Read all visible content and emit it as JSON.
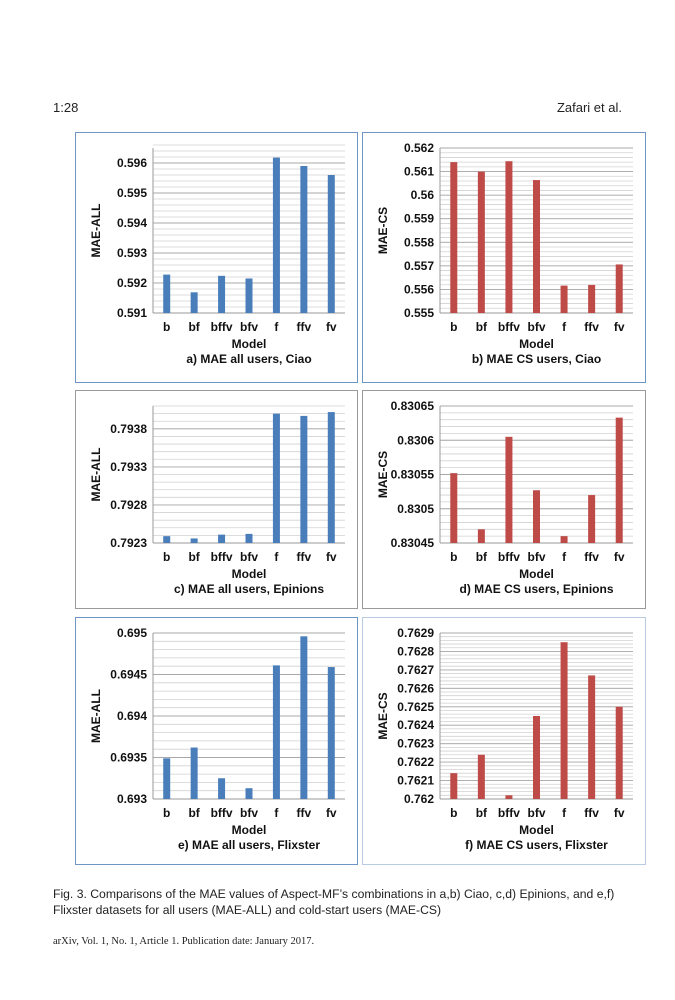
{
  "header": {
    "page_number": "1:28",
    "authors": "Zafari et al."
  },
  "colors": {
    "blue_series": "#4a7ebb",
    "red_series": "#be4b48",
    "grid": "#c8c8c8"
  },
  "chart_data": [
    {
      "type": "bar",
      "title": "a) MAE all users, Ciao",
      "xlabel": "Model",
      "ylabel": "MAE-ALL",
      "color": "#4a7ebb",
      "categories": [
        "b",
        "bf",
        "bffv",
        "bfv",
        "f",
        "ffv",
        "fv"
      ],
      "values": [
        0.59228,
        0.59169,
        0.59224,
        0.59215,
        0.59618,
        0.5959,
        0.5956
      ],
      "ylim": [
        0.591,
        0.5965
      ],
      "yticks": [
        "0.591",
        "0.592",
        "0.593",
        "0.594",
        "0.595",
        "0.596"
      ],
      "minor_grid_step": 0.0002,
      "grid": true
    },
    {
      "type": "bar",
      "title": "b) MAE CS users, Ciao",
      "xlabel": "Model",
      "ylabel": "MAE-CS",
      "color": "#be4b48",
      "categories": [
        "b",
        "bf",
        "bffv",
        "bfv",
        "f",
        "ffv",
        "fv"
      ],
      "values": [
        0.5614,
        0.561,
        0.56144,
        0.56064,
        0.55616,
        0.55619,
        0.55706
      ],
      "ylim": [
        0.555,
        0.562
      ],
      "yticks": [
        "0.555",
        "0.556",
        "0.557",
        "0.558",
        "0.559",
        "0.56",
        "0.561",
        "0.562"
      ],
      "minor_grid_step": 0.0002,
      "grid": true
    },
    {
      "type": "bar",
      "title": "c) MAE all users, Epinions",
      "xlabel": "Model",
      "ylabel": "MAE-ALL",
      "color": "#4a7ebb",
      "categories": [
        "b",
        "bf",
        "bffv",
        "bfv",
        "f",
        "ffv",
        "fv"
      ],
      "values": [
        0.79239,
        0.79236,
        0.79241,
        0.79242,
        0.794,
        0.79397,
        0.79402
      ],
      "ylim": [
        0.7923,
        0.7941
      ],
      "yticks": [
        "0.7923",
        "0.7928",
        "0.7933",
        "0.7938"
      ],
      "minor_grid_step": 0.0001,
      "grid": true
    },
    {
      "type": "bar",
      "title": "d) MAE CS users, Epinions",
      "xlabel": "Model",
      "ylabel": "MAE-CS",
      "color": "#be4b48",
      "categories": [
        "b",
        "bf",
        "bffv",
        "bfv",
        "f",
        "ffv",
        "fv"
      ],
      "values": [
        0.830552,
        0.83047,
        0.830605,
        0.830527,
        0.83046,
        0.83052,
        0.830633
      ],
      "ylim": [
        0.83045,
        0.83065
      ],
      "yticks": [
        "0.83045",
        "0.8305",
        "0.83055",
        "0.8306",
        "0.83065"
      ],
      "minor_grid_step": 1e-05,
      "grid": true
    },
    {
      "type": "bar",
      "title": "e) MAE all users, Flixster",
      "xlabel": "Model",
      "ylabel": "MAE-ALL",
      "color": "#4a7ebb",
      "categories": [
        "b",
        "bf",
        "bffv",
        "bfv",
        "f",
        "ffv",
        "fv"
      ],
      "values": [
        0.69349,
        0.69362,
        0.69325,
        0.69313,
        0.69461,
        0.69496,
        0.69459
      ],
      "ylim": [
        0.693,
        0.695
      ],
      "yticks": [
        "0.693",
        "0.6935",
        "0.694",
        "0.6945",
        "0.695"
      ],
      "minor_grid_step": 0.0001,
      "grid": true
    },
    {
      "type": "bar",
      "title": "f) MAE CS users, Flixster",
      "xlabel": "Model",
      "ylabel": "MAE-CS",
      "color": "#be4b48",
      "categories": [
        "b",
        "bf",
        "bffv",
        "bfv",
        "f",
        "ffv",
        "fv"
      ],
      "values": [
        0.76214,
        0.76224,
        0.76202,
        0.76245,
        0.76285,
        0.76267,
        0.7625
      ],
      "ylim": [
        0.762,
        0.7629
      ],
      "yticks": [
        "0.762",
        "0.7621",
        "0.7622",
        "0.7623",
        "0.7624",
        "0.7625",
        "0.7626",
        "0.7627",
        "0.7628",
        "0.7629"
      ],
      "minor_grid_step": 2e-05,
      "grid": true
    }
  ],
  "caption": "Fig. 3.  Comparisons of the MAE values of Aspect-MF’s combinations in a,b) Ciao, c,d) Epinions, and e,f) Flixster datasets for all users (MAE-ALL) and cold-start users (MAE-CS)",
  "footer": "arXiv, Vol. 1, No. 1, Article 1. Publication date: January 2017."
}
